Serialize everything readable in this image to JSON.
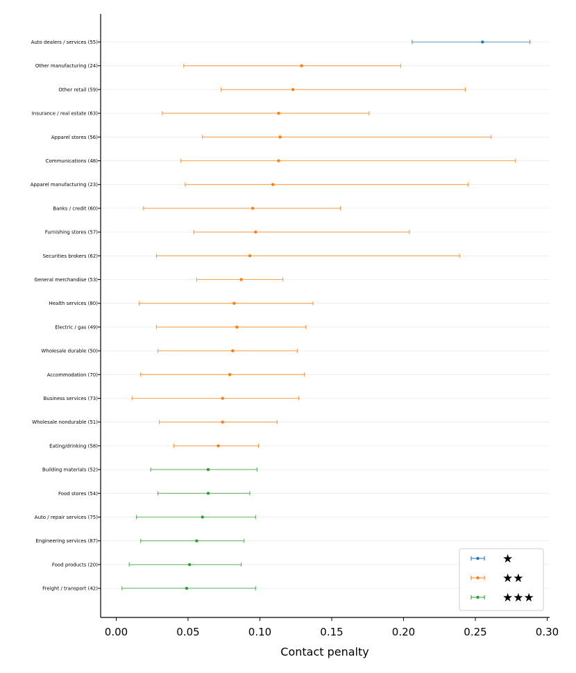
{
  "chart_data": {
    "type": "errorbar",
    "title": "",
    "xlabel": "Contact penalty",
    "ylabel": "",
    "xlim": [
      -0.011,
      0.302
    ],
    "xticks": [
      0.0,
      0.05,
      0.1,
      0.15,
      0.2,
      0.25,
      0.3
    ],
    "xtick_labels": [
      "0.00",
      "0.05",
      "0.10",
      "0.15",
      "0.20",
      "0.25",
      "0.30"
    ],
    "grid": "horizontal",
    "legend_position": "bottom-right",
    "legend": [
      {
        "label": "★",
        "color": "#1f77b4"
      },
      {
        "label": "★★",
        "color": "#ff7f0e"
      },
      {
        "label": "★★★",
        "color": "#2ca02c"
      }
    ],
    "rows": [
      {
        "label": "Auto dealers / services (55)",
        "value": 0.255,
        "low": 0.206,
        "high": 0.288,
        "group": 0
      },
      {
        "label": "Other manufacturing (24)",
        "value": 0.129,
        "low": 0.047,
        "high": 0.198,
        "group": 1
      },
      {
        "label": "Other retail (59)",
        "value": 0.123,
        "low": 0.073,
        "high": 0.243,
        "group": 1
      },
      {
        "label": "Insurance / real estate (63)",
        "value": 0.113,
        "low": 0.032,
        "high": 0.176,
        "group": 1
      },
      {
        "label": "Apparel stores (56)",
        "value": 0.114,
        "low": 0.06,
        "high": 0.261,
        "group": 1
      },
      {
        "label": "Communications (48)",
        "value": 0.113,
        "low": 0.045,
        "high": 0.278,
        "group": 1
      },
      {
        "label": "Apparel manufacturing (23)",
        "value": 0.109,
        "low": 0.048,
        "high": 0.245,
        "group": 1
      },
      {
        "label": "Banks / credit (60)",
        "value": 0.095,
        "low": 0.019,
        "high": 0.156,
        "group": 1
      },
      {
        "label": "Furnishing stores (57)",
        "value": 0.097,
        "low": 0.054,
        "high": 0.204,
        "group": 1
      },
      {
        "label": "Securities brokers (62)",
        "value": 0.093,
        "low": 0.028,
        "high": 0.239,
        "group": 1
      },
      {
        "label": "General merchandise (53)",
        "value": 0.087,
        "low": 0.056,
        "high": 0.116,
        "group": 1
      },
      {
        "label": "Health services (80)",
        "value": 0.082,
        "low": 0.016,
        "high": 0.137,
        "group": 1
      },
      {
        "label": "Electric / gas (49)",
        "value": 0.084,
        "low": 0.028,
        "high": 0.132,
        "group": 1
      },
      {
        "label": "Wholesale durable (50)",
        "value": 0.081,
        "low": 0.029,
        "high": 0.126,
        "group": 1
      },
      {
        "label": "Accommodation (70)",
        "value": 0.079,
        "low": 0.017,
        "high": 0.131,
        "group": 1
      },
      {
        "label": "Business services (73)",
        "value": 0.074,
        "low": 0.011,
        "high": 0.127,
        "group": 1
      },
      {
        "label": "Wholesale nondurable (51)",
        "value": 0.074,
        "low": 0.03,
        "high": 0.112,
        "group": 1
      },
      {
        "label": "Eating/drinking (58)",
        "value": 0.071,
        "low": 0.04,
        "high": 0.099,
        "group": 1
      },
      {
        "label": "Building materials (52)",
        "value": 0.064,
        "low": 0.024,
        "high": 0.098,
        "group": 2
      },
      {
        "label": "Food stores (54)",
        "value": 0.064,
        "low": 0.029,
        "high": 0.093,
        "group": 2
      },
      {
        "label": "Auto / repair services (75)",
        "value": 0.06,
        "low": 0.014,
        "high": 0.097,
        "group": 2
      },
      {
        "label": "Engineering services (87)",
        "value": 0.056,
        "low": 0.017,
        "high": 0.089,
        "group": 2
      },
      {
        "label": "Food products (20)",
        "value": 0.051,
        "low": 0.009,
        "high": 0.087,
        "group": 2
      },
      {
        "label": "Freight / transport (42)",
        "value": 0.049,
        "low": 0.004,
        "high": 0.097,
        "group": 2
      }
    ]
  }
}
